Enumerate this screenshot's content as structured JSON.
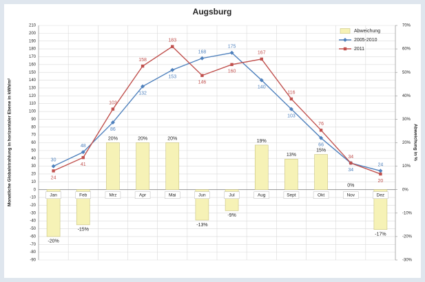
{
  "chart_data": {
    "type": "combo",
    "title": "Augsburg",
    "ylabel": "Monatliche Globalstrahlung in horizontaler Ebene in kWh/m²",
    "y2label": "Abweichung in %",
    "categories": [
      "Jan",
      "Feb",
      "Mrz",
      "Apr",
      "Mai",
      "Jun",
      "Jul",
      "Aug",
      "Sept",
      "Okt",
      "Nov",
      "Dez"
    ],
    "series": [
      {
        "name": "Abweichung",
        "kind": "bar",
        "axis": "y2",
        "color": "#f6f2b6",
        "values": [
          -20,
          -15,
          20,
          20,
          20,
          -13,
          -9,
          19,
          13,
          15,
          0,
          -17
        ],
        "value_labels": [
          "-20%",
          "-15%",
          "20%",
          "20%",
          "20%",
          "-13%",
          "-9%",
          "19%",
          "13%",
          "15%",
          "0%",
          "-17%"
        ]
      },
      {
        "name": "2005-2010",
        "kind": "line",
        "marker": "diamond",
        "color": "#4f81bd",
        "values": [
          30,
          48,
          86,
          132,
          153,
          168,
          175,
          140,
          103,
          66,
          34,
          24
        ]
      },
      {
        "name": "2011",
        "kind": "line",
        "marker": "square",
        "color": "#c0504d",
        "values": [
          24,
          41,
          103,
          158,
          183,
          146,
          160,
          167,
          116,
          76,
          34,
          20
        ]
      }
    ],
    "ylim": [
      -90,
      210
    ],
    "yticks": [
      -90,
      -80,
      -70,
      -60,
      -50,
      -40,
      -30,
      -20,
      -10,
      0,
      10,
      20,
      30,
      40,
      50,
      60,
      70,
      80,
      90,
      100,
      110,
      120,
      130,
      140,
      150,
      160,
      170,
      180,
      190,
      200,
      210
    ],
    "y2lim": [
      -30,
      70
    ],
    "y2ticks": [
      {
        "value": -30,
        "label": "-30%"
      },
      {
        "value": -20,
        "label": "-20%"
      },
      {
        "value": -10,
        "label": "-10%"
      },
      {
        "value": 0,
        "label": "0%"
      },
      {
        "value": 10,
        "label": "10%"
      },
      {
        "value": 20,
        "label": "20%"
      },
      {
        "value": 30,
        "label": "30%"
      },
      {
        "value": 40,
        "label": "40%"
      },
      {
        "value": 50,
        "label": "50%"
      },
      {
        "value": 60,
        "label": "60%"
      },
      {
        "value": 70,
        "label": "70%"
      }
    ],
    "grid": true,
    "legend": "upper right"
  }
}
